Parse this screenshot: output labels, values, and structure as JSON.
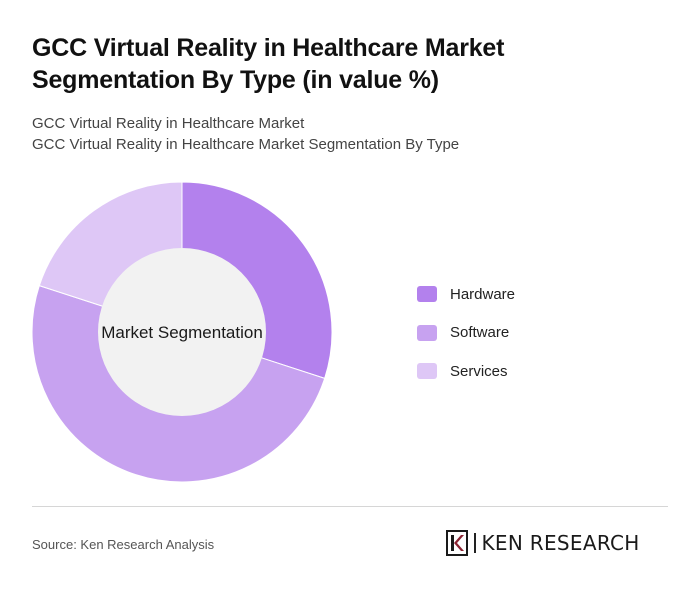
{
  "header": {
    "title": "GCC Virtual Reality in Healthcare Market Segmentation By Type (in value %)",
    "subtitle_line1": "GCC Virtual Reality in Healthcare Market",
    "subtitle_line2": "GCC Virtual Reality in Healthcare Market Segmentation By Type"
  },
  "chart_data": {
    "type": "pie",
    "donut": true,
    "center_label": "Market Segmentation",
    "categories": [
      "Hardware",
      "Software",
      "Services"
    ],
    "values": [
      30,
      50,
      20
    ],
    "colors": [
      "#b381ed",
      "#c7a2f0",
      "#dec7f6"
    ],
    "legend_position": "right"
  },
  "footer": {
    "source": "Source: Ken Research Analysis",
    "logo_text": "KEN RESEARCH",
    "logo_color": "#8b2332"
  }
}
